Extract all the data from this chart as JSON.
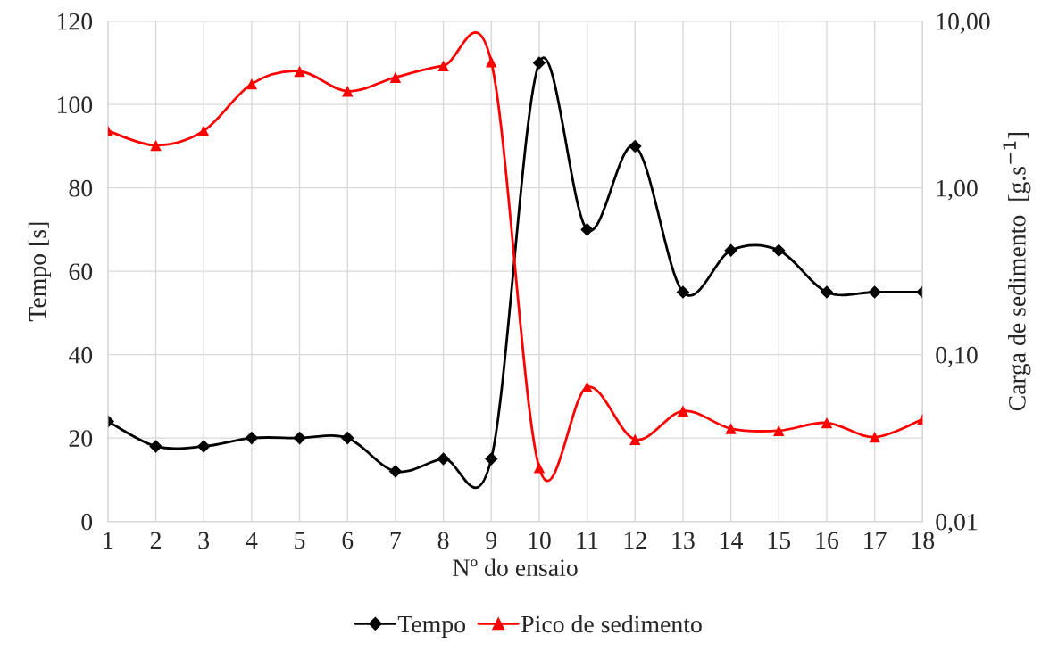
{
  "chart_data": {
    "type": "line",
    "xlabel": "Nº do ensaio",
    "ylabel": "Tempo [s]",
    "y2label": "Carga de sedimento  [g.s$^{−1}$]",
    "categories": [
      "1",
      "2",
      "3",
      "4",
      "5",
      "6",
      "7",
      "8",
      "9",
      "10",
      "11",
      "12",
      "13",
      "14",
      "15",
      "16",
      "17",
      "18"
    ],
    "series": [
      {
        "name": "Tempo",
        "color": "#000000",
        "marker": "diamond",
        "values": [
          24,
          18,
          18,
          20,
          20,
          20,
          12,
          15,
          15,
          110,
          70,
          90,
          55,
          65,
          65,
          55,
          55,
          55
        ]
      },
      {
        "name": "Pico de sedimento",
        "color": "#ff0000",
        "marker": "triangle",
        "axis": "y2",
        "values": [
          2.2,
          1.8,
          2.2,
          4.2,
          5.0,
          3.8,
          4.6,
          5.4,
          5.7,
          0.021,
          0.064,
          0.031,
          0.046,
          0.036,
          0.035,
          0.039,
          0.032,
          0.041
        ]
      }
    ],
    "ylim": [
      0,
      120
    ],
    "yticks": [
      0,
      20,
      40,
      60,
      80,
      100,
      120
    ],
    "log": "y2",
    "y2lim": [
      0.01,
      10
    ],
    "y2ticks": [
      {
        "value": 0.01,
        "label": "0,01"
      },
      {
        "value": 0.1,
        "label": "0,10"
      },
      {
        "value": 1,
        "label": "1,00"
      },
      {
        "value": 10,
        "label": "10,00"
      }
    ],
    "grid": true,
    "legend": "bottom",
    "line_style": "solid"
  }
}
